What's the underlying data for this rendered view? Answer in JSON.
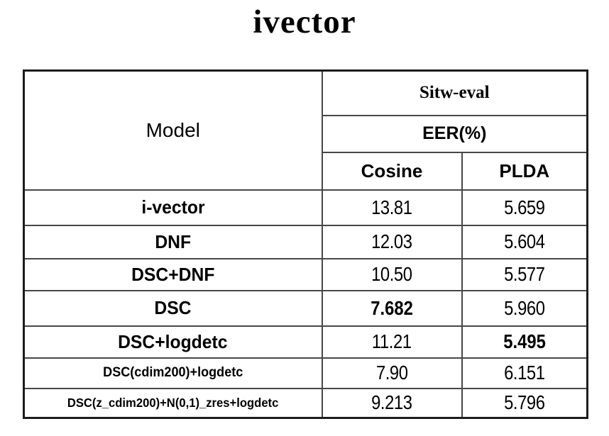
{
  "title": "ivector",
  "colors": {
    "background": "#ffffff",
    "text": "#000000",
    "border_outer": "#1c1c1c",
    "border_inner": "#474747"
  },
  "table": {
    "header": {
      "model": "Model",
      "group": "Sitw-eval",
      "metric": "EER(%)",
      "col1": "Cosine",
      "col2": "PLDA"
    },
    "rows": [
      {
        "model": "i-vector",
        "cosine": "13.81",
        "plda": "5.659",
        "bold": [],
        "small": false
      },
      {
        "model": "DNF",
        "cosine": "12.03",
        "plda": "5.604",
        "bold": [],
        "small": false
      },
      {
        "model": "DSC+DNF",
        "cosine": "10.50",
        "plda": "5.577",
        "bold": [],
        "small": false
      },
      {
        "model": "DSC",
        "cosine": "7.682",
        "plda": "5.960",
        "bold": [
          "cosine"
        ],
        "small": false
      },
      {
        "model": "DSC+logdetc",
        "cosine": "11.21",
        "plda": "5.495",
        "bold": [
          "plda"
        ],
        "small": false
      },
      {
        "model": "DSC(cdim200)+logdetc",
        "cosine": "7.90",
        "plda": "6.151",
        "bold": [],
        "small": true
      },
      {
        "model": "DSC(z_cdim200)+N(0,1)_zres+logdetc",
        "cosine": "9.213",
        "plda": "5.796",
        "bold": [],
        "small": true
      }
    ]
  },
  "chart_data": {
    "type": "table",
    "title": "ivector",
    "row_header": "Model",
    "column_groups": [
      {
        "label": "Sitw-eval",
        "metric": "EER(%)",
        "columns": [
          "Cosine",
          "PLDA"
        ]
      }
    ],
    "rows": [
      [
        "i-vector",
        13.81,
        5.659
      ],
      [
        "DNF",
        12.03,
        5.604
      ],
      [
        "DSC+DNF",
        10.5,
        5.577
      ],
      [
        "DSC",
        7.682,
        5.96
      ],
      [
        "DSC+logdetc",
        11.21,
        5.495
      ],
      [
        "DSC(cdim200)+logdetc",
        7.9,
        6.151
      ],
      [
        "DSC(z_cdim200)+N(0,1)_zres+logdetc",
        9.213,
        5.796
      ]
    ],
    "bold_cells": [
      {
        "row": "DSC",
        "column": "Cosine",
        "value": 7.682
      },
      {
        "row": "DSC+logdetc",
        "column": "PLDA",
        "value": 5.495
      }
    ]
  }
}
